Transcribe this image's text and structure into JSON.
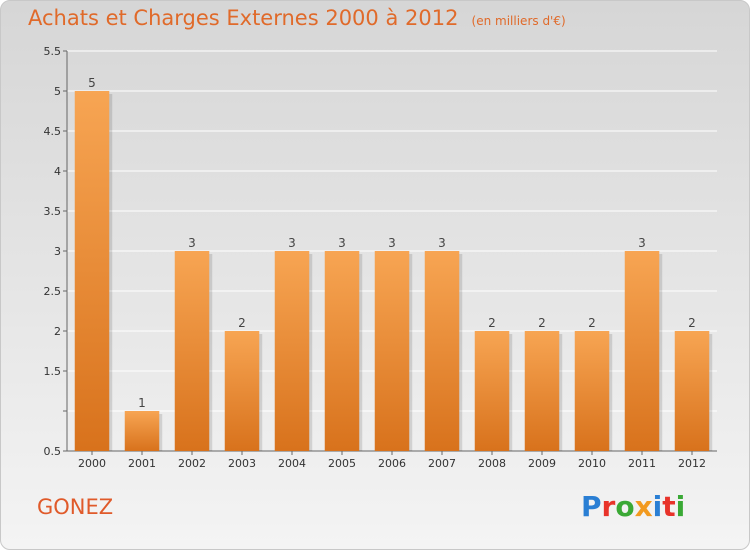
{
  "header": {
    "title": "Achats et Charges Externes 2000 à 2012",
    "unit": "(en milliers d'€)"
  },
  "commune": "GONEZ",
  "logo": {
    "text": "Proxiti",
    "letters": [
      {
        "ch": "P",
        "color": "#2a7fd4"
      },
      {
        "ch": "r",
        "color": "#e8332a"
      },
      {
        "ch": "o",
        "color": "#3aa935"
      },
      {
        "ch": "x",
        "color": "#f29a1f"
      },
      {
        "ch": "i",
        "color": "#2a7fd4"
      },
      {
        "ch": "t",
        "color": "#e8332a"
      },
      {
        "ch": "i",
        "color": "#3aa935"
      }
    ]
  },
  "chart_data": {
    "type": "bar",
    "categories": [
      "2000",
      "2001",
      "2002",
      "2003",
      "2004",
      "2005",
      "2006",
      "2007",
      "2008",
      "2009",
      "2010",
      "2011",
      "2012"
    ],
    "values": [
      5,
      1,
      3,
      2,
      3,
      3,
      3,
      3,
      2,
      2,
      2,
      3,
      2
    ],
    "value_labels": [
      "5",
      "1",
      "3",
      "2",
      "3",
      "3",
      "3",
      "3",
      "2",
      "2",
      "2",
      "3",
      "2"
    ],
    "ylim": [
      0.5,
      5.5
    ],
    "yticks": [
      0.5,
      1,
      1.5,
      2,
      2.5,
      3,
      3.5,
      4,
      4.5,
      5,
      5.5
    ],
    "ytick_labels": [
      "0.5",
      "",
      "1.5",
      "2",
      "2.5",
      "3",
      "3.5",
      "4",
      "4.5",
      "5",
      "5.5"
    ],
    "grid": true,
    "colors": {
      "bar_top": "#f7a553",
      "bar_bottom": "#d8721c",
      "grid": "#ffffff",
      "axis": "#666666"
    }
  }
}
